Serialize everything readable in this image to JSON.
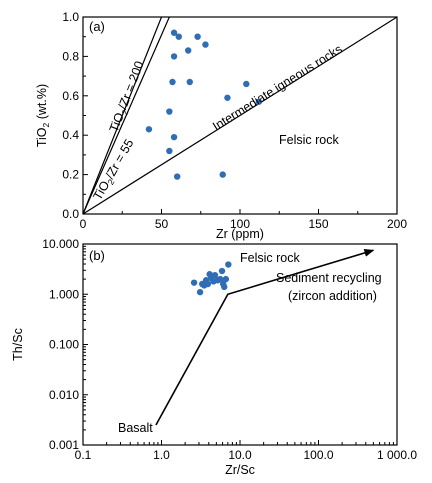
{
  "chart_data": [
    {
      "type": "scatter",
      "panel_label": "(a)",
      "xlabel": "Zr (ppm)",
      "ylabel": {
        "pre": "TiO",
        "sub": "2",
        "post": " (wt.%)"
      },
      "xlim": [
        0,
        200
      ],
      "ylim": [
        0,
        1.0
      ],
      "x_ticks": [
        "0",
        "50",
        "100",
        "150",
        "200"
      ],
      "y_ticks": [
        "0.0",
        "0.2",
        "0.4",
        "0.6",
        "0.8",
        "1.0"
      ],
      "point_color": "#2f6db5",
      "points": [
        {
          "x": 58,
          "y": 0.92
        },
        {
          "x": 61,
          "y": 0.9
        },
        {
          "x": 73,
          "y": 0.9
        },
        {
          "x": 78,
          "y": 0.86
        },
        {
          "x": 67,
          "y": 0.83
        },
        {
          "x": 58,
          "y": 0.8
        },
        {
          "x": 57,
          "y": 0.67
        },
        {
          "x": 68,
          "y": 0.67
        },
        {
          "x": 104,
          "y": 0.66
        },
        {
          "x": 92,
          "y": 0.59
        },
        {
          "x": 112,
          "y": 0.57
        },
        {
          "x": 55,
          "y": 0.52
        },
        {
          "x": 42,
          "y": 0.43
        },
        {
          "x": 58,
          "y": 0.39
        },
        {
          "x": 55,
          "y": 0.32
        },
        {
          "x": 60,
          "y": 0.19
        },
        {
          "x": 89,
          "y": 0.2
        }
      ],
      "lines": [
        {
          "x1": 0,
          "y1": 0,
          "x2": 200,
          "y2": 1.0
        },
        {
          "x1": 0,
          "y1": 0,
          "x2": 50,
          "y2": 1.0
        },
        {
          "x1": 0,
          "y1": 0,
          "x2": 55,
          "y2": 1.0
        }
      ],
      "annotations": {
        "intermediate": "Intermediate igneous rocks",
        "felsic": "Felsic rock",
        "ratio200": {
          "pre": "TiO",
          "sub": "2",
          "post": "/Zr = 200"
        },
        "ratio55": {
          "pre": "TiO",
          "sub": "2",
          "post": "/Zr = 55"
        }
      }
    },
    {
      "type": "scatter",
      "panel_label": "(b)",
      "xlabel": "Zr/Sc",
      "ylabel": "Th/Sc",
      "xscale": "log",
      "yscale": "log",
      "xlim": [
        0.1,
        1000
      ],
      "ylim": [
        0.001,
        10
      ],
      "x_ticks": [
        "0.1",
        "1.0",
        "10.0",
        "100.0",
        "1 000.0"
      ],
      "y_ticks": [
        "0.001",
        "0.010",
        "0.100",
        "1.000",
        "10.000"
      ],
      "point_color": "#2f6db5",
      "points": [
        {
          "x": 2.6,
          "y": 1.7
        },
        {
          "x": 3.1,
          "y": 1.1
        },
        {
          "x": 3.3,
          "y": 1.6
        },
        {
          "x": 3.5,
          "y": 1.5
        },
        {
          "x": 3.7,
          "y": 1.9
        },
        {
          "x": 3.9,
          "y": 1.6
        },
        {
          "x": 4.1,
          "y": 2.5
        },
        {
          "x": 4.3,
          "y": 2.1
        },
        {
          "x": 4.6,
          "y": 1.8
        },
        {
          "x": 4.8,
          "y": 2.4
        },
        {
          "x": 5.2,
          "y": 1.9
        },
        {
          "x": 5.6,
          "y": 2.0
        },
        {
          "x": 5.9,
          "y": 2.9
        },
        {
          "x": 6.1,
          "y": 1.6
        },
        {
          "x": 6.3,
          "y": 1.4
        },
        {
          "x": 6.6,
          "y": 2.0
        },
        {
          "x": 7.1,
          "y": 3.9
        }
      ],
      "arrow": {
        "x1": 0.85,
        "y1": 0.0025,
        "x2": 7.0,
        "y2": 1.0,
        "x3": 500,
        "y3": 7.5
      },
      "annotations": {
        "felsic": "Felsic rock",
        "sediment": "Sediment recycling",
        "zircon": "(zircon addition)",
        "basalt": "Basalt"
      }
    }
  ]
}
